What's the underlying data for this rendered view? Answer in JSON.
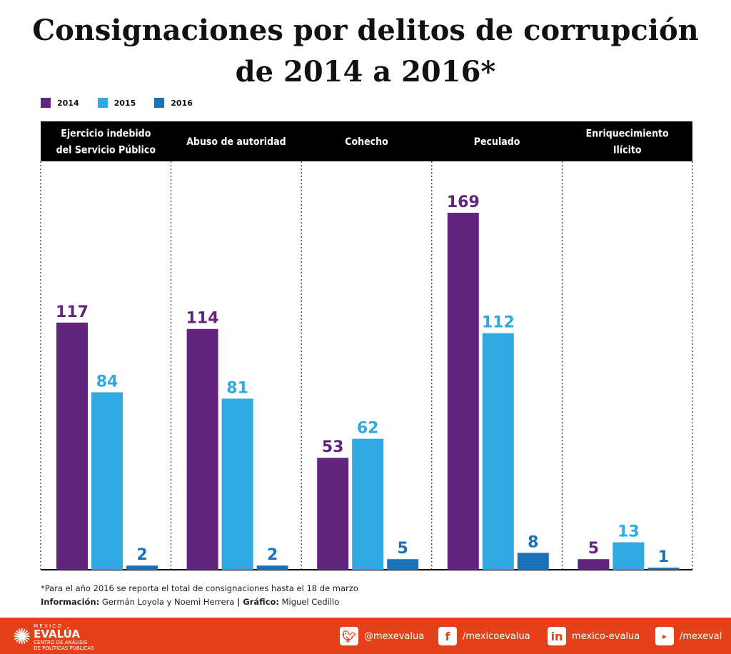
{
  "title_line1": "Consignaciones por delitos de corrupción",
  "title_line2": "de 2014 a 2016*",
  "chart_data": {
    "type": "bar",
    "title": "Consignaciones por delitos de corrupción de 2014 a 2016*",
    "categories": [
      [
        "Ejercicio indebido",
        "del Servicio Público"
      ],
      [
        "Abuso de autoridad"
      ],
      [
        "Cohecho"
      ],
      [
        "Peculado"
      ],
      [
        "Enriquecimiento",
        "Ilícito"
      ]
    ],
    "series": [
      {
        "name": "2014",
        "color": "#62247e",
        "values": [
          117,
          114,
          53,
          169,
          5
        ]
      },
      {
        "name": "2015",
        "color": "#2fa9e1",
        "values": [
          84,
          81,
          62,
          112,
          13
        ]
      },
      {
        "name": "2016",
        "color": "#1b72b8",
        "values": [
          2,
          2,
          5,
          8,
          1
        ]
      }
    ],
    "ylim": [
      0,
      180
    ],
    "grid": false,
    "legend": "top-left",
    "header_color": "#000000"
  },
  "notes": {
    "footnote": "*Para el año 2016 se reporta el total de consignaciones hasta el 18 de marzo",
    "info_label": "Información:",
    "info_value": " Germán Loyola y Noemi Herrera ",
    "sep": "|",
    "graph_label": " Gráfico:",
    "graph_value": " Miguel Cedillo"
  },
  "footer": {
    "bg": "#e4411a",
    "logo_top": "M É X I C O",
    "logo_main": "EVALÚA",
    "logo_sub1": "CENTRO DE ANÁLISIS",
    "logo_sub2": "DE POLÍTICAS PÚBLICAS",
    "twitter": "@mexevalua",
    "facebook": "/mexicoevalua",
    "linkedin": "mexico-evalua",
    "youtube": "/mexeval"
  }
}
